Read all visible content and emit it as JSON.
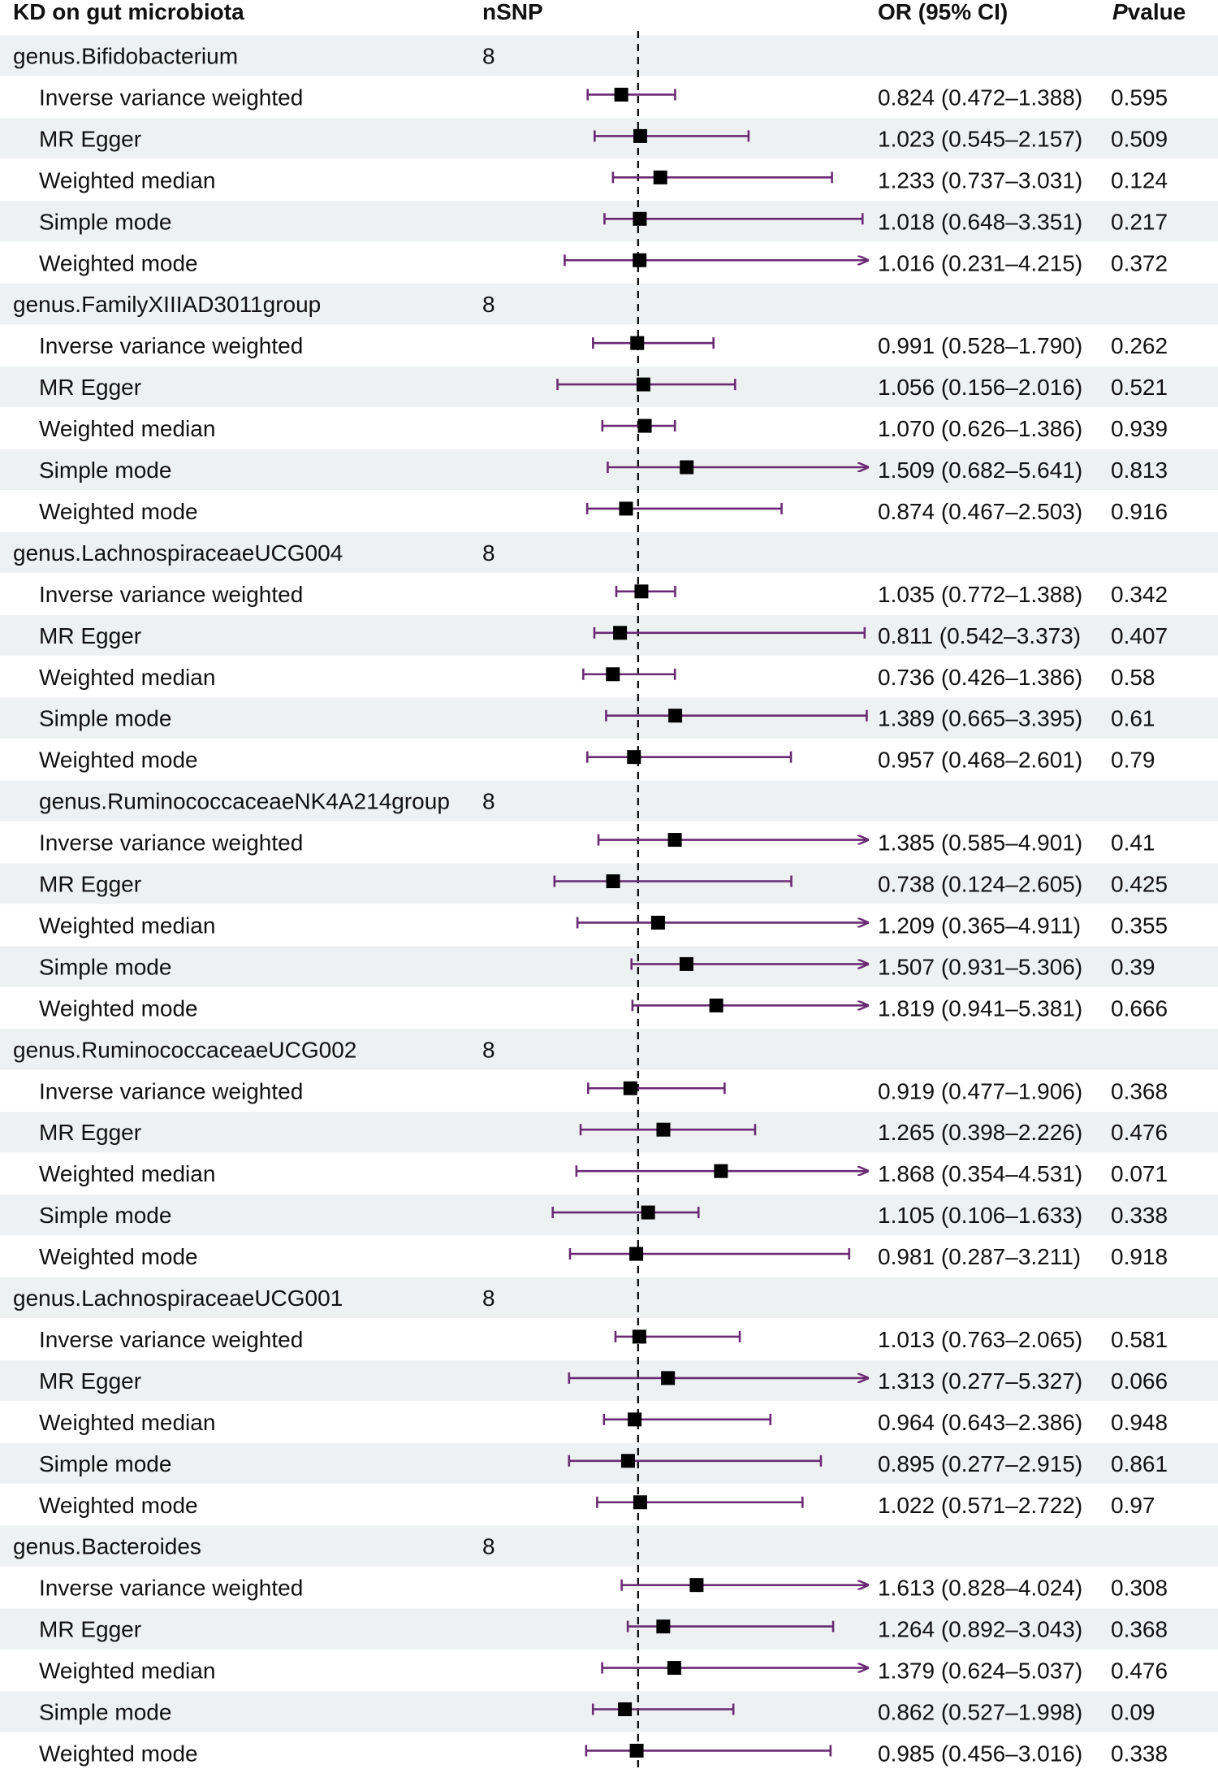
{
  "chart_data": {
    "type": "forest",
    "title": "KD on gut microbiota",
    "columns": {
      "label": "KD on gut microbiota",
      "nsnp": "nSNP",
      "or": "OR (95% CI)",
      "p_italic": "P",
      "p_rest": "value"
    },
    "reference_line": 1,
    "x_range": [
      0.1,
      3.4
    ],
    "colors": {
      "band": "#eef1f1",
      "ci": "#6a2a73",
      "point": "#000000",
      "ref": "#000000"
    },
    "groups": [
      {
        "name": "genus.Bifidobacterium",
        "nsnp": "8",
        "rows": [
          {
            "method": "Inverse variance weighted",
            "or": 0.824,
            "lo": 0.472,
            "hi": 1.388,
            "or_text": "0.824 (0.472–1.388)",
            "p": "0.595"
          },
          {
            "method": "MR Egger",
            "or": 1.023,
            "lo": 0.545,
            "hi": 2.157,
            "or_text": "1.023 (0.545–2.157)",
            "p": "0.509"
          },
          {
            "method": "Weighted median",
            "or": 1.233,
            "lo": 0.737,
            "hi": 3.031,
            "or_text": "1.233 (0.737–3.031)",
            "p": "0.124"
          },
          {
            "method": "Simple mode",
            "or": 1.018,
            "lo": 0.648,
            "hi": 3.351,
            "or_text": "1.018 (0.648–3.351)",
            "p": "0.217"
          },
          {
            "method": "Weighted mode",
            "or": 1.016,
            "lo": 0.231,
            "hi": 4.215,
            "or_text": "1.016 (0.231–4.215)",
            "p": "0.372"
          }
        ]
      },
      {
        "name": "genus.FamilyXIIIAD3011group",
        "nsnp": "8",
        "rows": [
          {
            "method": "Inverse variance weighted",
            "or": 0.991,
            "lo": 0.528,
            "hi": 1.79,
            "or_text": "0.991 (0.528–1.790)",
            "p": "0.262"
          },
          {
            "method": "MR Egger",
            "or": 1.056,
            "lo": 0.156,
            "hi": 2.016,
            "or_text": "1.056 (0.156–2.016)",
            "p": "0.521"
          },
          {
            "method": "Weighted median",
            "or": 1.07,
            "lo": 0.626,
            "hi": 1.386,
            "or_text": "1.070 (0.626–1.386)",
            "p": "0.939"
          },
          {
            "method": "Simple mode",
            "or": 1.509,
            "lo": 0.682,
            "hi": 5.641,
            "or_text": "1.509 (0.682–5.641)",
            "p": "0.813"
          },
          {
            "method": "Weighted mode",
            "or": 0.874,
            "lo": 0.467,
            "hi": 2.503,
            "or_text": "0.874 (0.467–2.503)",
            "p": "0.916"
          }
        ]
      },
      {
        "name": "genus.LachnospiraceaeUCG004",
        "nsnp": "8",
        "rows": [
          {
            "method": "Inverse variance weighted",
            "or": 1.035,
            "lo": 0.772,
            "hi": 1.388,
            "or_text": "1.035 (0.772–1.388)",
            "p": "0.342"
          },
          {
            "method": "MR Egger",
            "or": 0.811,
            "lo": 0.542,
            "hi": 3.373,
            "or_text": "0.811 (0.542–3.373)",
            "p": "0.407"
          },
          {
            "method": "Weighted median",
            "or": 0.736,
            "lo": 0.426,
            "hi": 1.386,
            "or_text": "0.736 (0.426–1.386)",
            "p": "0.58"
          },
          {
            "method": "Simple mode",
            "or": 1.389,
            "lo": 0.665,
            "hi": 3.395,
            "or_text": "1.389 (0.665–3.395)",
            "p": "0.61"
          },
          {
            "method": "Weighted mode",
            "or": 0.957,
            "lo": 0.468,
            "hi": 2.601,
            "or_text": "0.957 (0.468–2.601)",
            "p": "0.79"
          }
        ]
      },
      {
        "name": "genus.RuminococcaceaeNK4A214group",
        "nsnp": "8",
        "rows": [
          {
            "method": "Inverse variance weighted",
            "or": 1.385,
            "lo": 0.585,
            "hi": 4.901,
            "or_text": "1.385 (0.585–4.901)",
            "p": "0.41"
          },
          {
            "method": "MR Egger",
            "or": 0.738,
            "lo": 0.124,
            "hi": 2.605,
            "or_text": "0.738 (0.124–2.605)",
            "p": "0.425"
          },
          {
            "method": "Weighted median",
            "or": 1.209,
            "lo": 0.365,
            "hi": 4.911,
            "or_text": "1.209 (0.365–4.911)",
            "p": "0.355"
          },
          {
            "method": "Simple mode",
            "or": 1.507,
            "lo": 0.931,
            "hi": 5.306,
            "or_text": "1.507 (0.931–5.306)",
            "p": "0.39"
          },
          {
            "method": "Weighted mode",
            "or": 1.819,
            "lo": 0.941,
            "hi": 5.381,
            "or_text": "1.819 (0.941–5.381)",
            "p": "0.666"
          }
        ]
      },
      {
        "name": "genus.RuminococcaceaeUCG002",
        "nsnp": "8",
        "rows": [
          {
            "method": "Inverse variance weighted",
            "or": 0.919,
            "lo": 0.477,
            "hi": 1.906,
            "or_text": "0.919 (0.477–1.906)",
            "p": "0.368"
          },
          {
            "method": "MR Egger",
            "or": 1.265,
            "lo": 0.398,
            "hi": 2.226,
            "or_text": "1.265 (0.398–2.226)",
            "p": "0.476"
          },
          {
            "method": "Weighted median",
            "or": 1.868,
            "lo": 0.354,
            "hi": 4.531,
            "or_text": "1.868 (0.354–4.531)",
            "p": "0.071"
          },
          {
            "method": "Simple mode",
            "or": 1.105,
            "lo": 0.106,
            "hi": 1.633,
            "or_text": "1.105 (0.106–1.633)",
            "p": "0.338"
          },
          {
            "method": "Weighted mode",
            "or": 0.981,
            "lo": 0.287,
            "hi": 3.211,
            "or_text": "0.981 (0.287–3.211)",
            "p": "0.918"
          }
        ]
      },
      {
        "name": "genus.LachnospiraceaeUCG001",
        "nsnp": "8",
        "rows": [
          {
            "method": "Inverse variance weighted",
            "or": 1.013,
            "lo": 0.763,
            "hi": 2.065,
            "or_text": "1.013 (0.763–2.065)",
            "p": "0.581"
          },
          {
            "method": "MR Egger",
            "or": 1.313,
            "lo": 0.277,
            "hi": 5.327,
            "or_text": "1.313 (0.277–5.327)",
            "p": "0.066"
          },
          {
            "method": "Weighted median",
            "or": 0.964,
            "lo": 0.643,
            "hi": 2.386,
            "or_text": "0.964 (0.643–2.386)",
            "p": "0.948"
          },
          {
            "method": "Simple mode",
            "or": 0.895,
            "lo": 0.277,
            "hi": 2.915,
            "or_text": "0.895 (0.277–2.915)",
            "p": "0.861"
          },
          {
            "method": "Weighted mode",
            "or": 1.022,
            "lo": 0.571,
            "hi": 2.722,
            "or_text": "1.022 (0.571–2.722)",
            "p": "0.97"
          }
        ]
      },
      {
        "name": "genus.Bacteroides",
        "nsnp": "8",
        "rows": [
          {
            "method": "Inverse variance weighted",
            "or": 1.613,
            "lo": 0.828,
            "hi": 4.024,
            "or_text": "1.613 (0.828–4.024)",
            "p": "0.308"
          },
          {
            "method": "MR Egger",
            "or": 1.264,
            "lo": 0.892,
            "hi": 3.043,
            "or_text": "1.264 (0.892–3.043)",
            "p": "0.368"
          },
          {
            "method": "Weighted median",
            "or": 1.379,
            "lo": 0.624,
            "hi": 5.037,
            "or_text": "1.379 (0.624–5.037)",
            "p": "0.476"
          },
          {
            "method": "Simple mode",
            "or": 0.862,
            "lo": 0.527,
            "hi": 1.998,
            "or_text": "0.862 (0.527–1.998)",
            "p": "0.09"
          },
          {
            "method": "Weighted mode",
            "or": 0.985,
            "lo": 0.456,
            "hi": 3.016,
            "or_text": "0.985 (0.456–3.016)",
            "p": "0.338"
          }
        ]
      }
    ]
  }
}
